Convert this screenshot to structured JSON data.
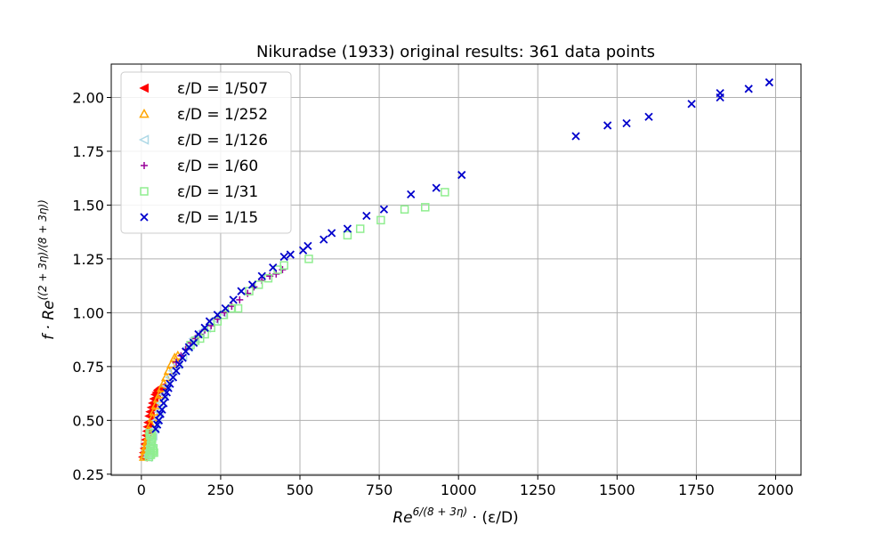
{
  "chart_data": {
    "type": "scatter",
    "title": "Nikuradse (1933) original results: 361 data points",
    "xlabel": {
      "base": "Re",
      "sup": "6/(8 + 3η)",
      "rest": " · (ε/D)"
    },
    "ylabel": {
      "base": "f · Re",
      "sup": "((2 + 3η)/(8 + 3η))"
    },
    "xlim": [
      -95,
      2080
    ],
    "ylim": [
      0.245,
      2.155
    ],
    "xticks": [
      0,
      250,
      500,
      750,
      1000,
      1250,
      1500,
      1750,
      2000
    ],
    "xtick_labels": [
      "0",
      "250",
      "500",
      "750",
      "1000",
      "1250",
      "1500",
      "1750",
      "2000"
    ],
    "yticks": [
      0.25,
      0.5,
      0.75,
      1.0,
      1.25,
      1.5,
      1.75,
      2.0
    ],
    "ytick_labels": [
      "0.25",
      "0.50",
      "0.75",
      "1.00",
      "1.25",
      "1.50",
      "1.75",
      "2.00"
    ],
    "grid": true,
    "legend_position": "top-left",
    "series": [
      {
        "name": "ε/D = 1/507",
        "marker": "triangle-left-filled",
        "color": "#ff0000",
        "points": [
          [
            5,
            0.33
          ],
          [
            8,
            0.35
          ],
          [
            10,
            0.37
          ],
          [
            12,
            0.39
          ],
          [
            14,
            0.41
          ],
          [
            16,
            0.43
          ],
          [
            18,
            0.45
          ],
          [
            20,
            0.47
          ],
          [
            22,
            0.49
          ],
          [
            25,
            0.52
          ],
          [
            28,
            0.54
          ],
          [
            32,
            0.56
          ],
          [
            36,
            0.58
          ],
          [
            40,
            0.6
          ],
          [
            44,
            0.62
          ],
          [
            48,
            0.63
          ],
          [
            52,
            0.64
          ],
          [
            56,
            0.645
          ],
          [
            60,
            0.65
          ],
          [
            65,
            0.655
          ]
        ]
      },
      {
        "name": "ε/D = 1/252",
        "marker": "triangle-up-open",
        "color": "#ffa500",
        "points": [
          [
            8,
            0.33
          ],
          [
            10,
            0.34
          ],
          [
            12,
            0.36
          ],
          [
            15,
            0.38
          ],
          [
            18,
            0.4
          ],
          [
            21,
            0.42
          ],
          [
            25,
            0.45
          ],
          [
            30,
            0.48
          ],
          [
            35,
            0.51
          ],
          [
            40,
            0.54
          ],
          [
            46,
            0.57
          ],
          [
            52,
            0.6
          ],
          [
            58,
            0.62
          ],
          [
            64,
            0.65
          ],
          [
            70,
            0.67
          ],
          [
            78,
            0.7
          ],
          [
            86,
            0.73
          ],
          [
            95,
            0.76
          ],
          [
            105,
            0.79
          ],
          [
            115,
            0.8
          ]
        ]
      },
      {
        "name": "ε/D = 1/126",
        "marker": "triangle-left-open",
        "color": "#add8e6",
        "points": [
          [
            20,
            0.33
          ],
          [
            22,
            0.34
          ],
          [
            25,
            0.36
          ],
          [
            28,
            0.38
          ],
          [
            32,
            0.4
          ],
          [
            36,
            0.43
          ],
          [
            42,
            0.46
          ],
          [
            48,
            0.5
          ],
          [
            55,
            0.54
          ],
          [
            62,
            0.58
          ],
          [
            70,
            0.62
          ],
          [
            80,
            0.66
          ],
          [
            90,
            0.7
          ],
          [
            100,
            0.73
          ],
          [
            115,
            0.76
          ],
          [
            130,
            0.8
          ],
          [
            148,
            0.84
          ],
          [
            165,
            0.88
          ],
          [
            185,
            0.91
          ],
          [
            205,
            0.93
          ],
          [
            230,
            0.97
          ],
          [
            255,
            1.0
          ]
        ]
      },
      {
        "name": "ε/D = 1/60",
        "marker": "plus",
        "color": "#990099",
        "points": [
          [
            110,
            0.77
          ],
          [
            125,
            0.8
          ],
          [
            140,
            0.83
          ],
          [
            155,
            0.86
          ],
          [
            170,
            0.88
          ],
          [
            185,
            0.9
          ],
          [
            200,
            0.92
          ],
          [
            220,
            0.94
          ],
          [
            240,
            0.97
          ],
          [
            262,
            1.0
          ],
          [
            285,
            1.03
          ],
          [
            310,
            1.06
          ],
          [
            335,
            1.09
          ],
          [
            355,
            1.12
          ],
          [
            380,
            1.15
          ],
          [
            405,
            1.17
          ],
          [
            425,
            1.18
          ],
          [
            445,
            1.2
          ]
        ]
      },
      {
        "name": "ε/D = 1/31",
        "marker": "square-open",
        "color": "#90ee90",
        "points": [
          [
            24,
            0.33
          ],
          [
            26,
            0.34
          ],
          [
            27,
            0.35
          ],
          [
            28,
            0.36
          ],
          [
            29,
            0.37
          ],
          [
            30,
            0.38
          ],
          [
            31,
            0.39
          ],
          [
            32,
            0.4
          ],
          [
            33,
            0.41
          ],
          [
            34,
            0.42
          ],
          [
            30,
            0.34
          ],
          [
            35,
            0.35
          ],
          [
            28,
            0.43
          ],
          [
            26,
            0.44
          ],
          [
            32,
            0.44
          ],
          [
            36,
            0.36
          ],
          [
            40,
            0.35
          ],
          [
            38,
            0.37
          ],
          [
            155,
            0.85
          ],
          [
            170,
            0.87
          ],
          [
            185,
            0.88
          ],
          [
            200,
            0.9
          ],
          [
            220,
            0.93
          ],
          [
            240,
            0.96
          ],
          [
            260,
            0.99
          ],
          [
            285,
            1.02
          ],
          [
            305,
            1.02
          ],
          [
            340,
            1.1
          ],
          [
            370,
            1.13
          ],
          [
            400,
            1.16
          ],
          [
            430,
            1.2
          ],
          [
            450,
            1.22
          ],
          [
            528,
            1.25
          ],
          [
            650,
            1.36
          ],
          [
            690,
            1.39
          ],
          [
            755,
            1.43
          ],
          [
            830,
            1.48
          ],
          [
            895,
            1.49
          ],
          [
            957,
            1.56
          ]
        ]
      },
      {
        "name": "ε/D = 1/15",
        "marker": "x",
        "color": "#0000cc",
        "points": [
          [
            45,
            0.46
          ],
          [
            50,
            0.48
          ],
          [
            55,
            0.5
          ],
          [
            60,
            0.53
          ],
          [
            65,
            0.55
          ],
          [
            70,
            0.58
          ],
          [
            75,
            0.61
          ],
          [
            80,
            0.63
          ],
          [
            85,
            0.65
          ],
          [
            90,
            0.67
          ],
          [
            100,
            0.7
          ],
          [
            110,
            0.73
          ],
          [
            120,
            0.76
          ],
          [
            130,
            0.79
          ],
          [
            140,
            0.82
          ],
          [
            150,
            0.84
          ],
          [
            165,
            0.86
          ],
          [
            180,
            0.9
          ],
          [
            200,
            0.93
          ],
          [
            215,
            0.96
          ],
          [
            240,
            0.99
          ],
          [
            265,
            1.02
          ],
          [
            290,
            1.06
          ],
          [
            315,
            1.1
          ],
          [
            350,
            1.13
          ],
          [
            380,
            1.17
          ],
          [
            415,
            1.21
          ],
          [
            450,
            1.26
          ],
          [
            470,
            1.27
          ],
          [
            510,
            1.29
          ],
          [
            525,
            1.31
          ],
          [
            575,
            1.34
          ],
          [
            600,
            1.37
          ],
          [
            650,
            1.39
          ],
          [
            710,
            1.45
          ],
          [
            765,
            1.48
          ],
          [
            850,
            1.55
          ],
          [
            930,
            1.58
          ],
          [
            1010,
            1.64
          ],
          [
            1370,
            1.82
          ],
          [
            1470,
            1.87
          ],
          [
            1530,
            1.88
          ],
          [
            1600,
            1.91
          ],
          [
            1735,
            1.97
          ],
          [
            1825,
            2.0
          ],
          [
            1825,
            2.02
          ],
          [
            1915,
            2.04
          ],
          [
            1980,
            2.07
          ]
        ]
      }
    ]
  }
}
